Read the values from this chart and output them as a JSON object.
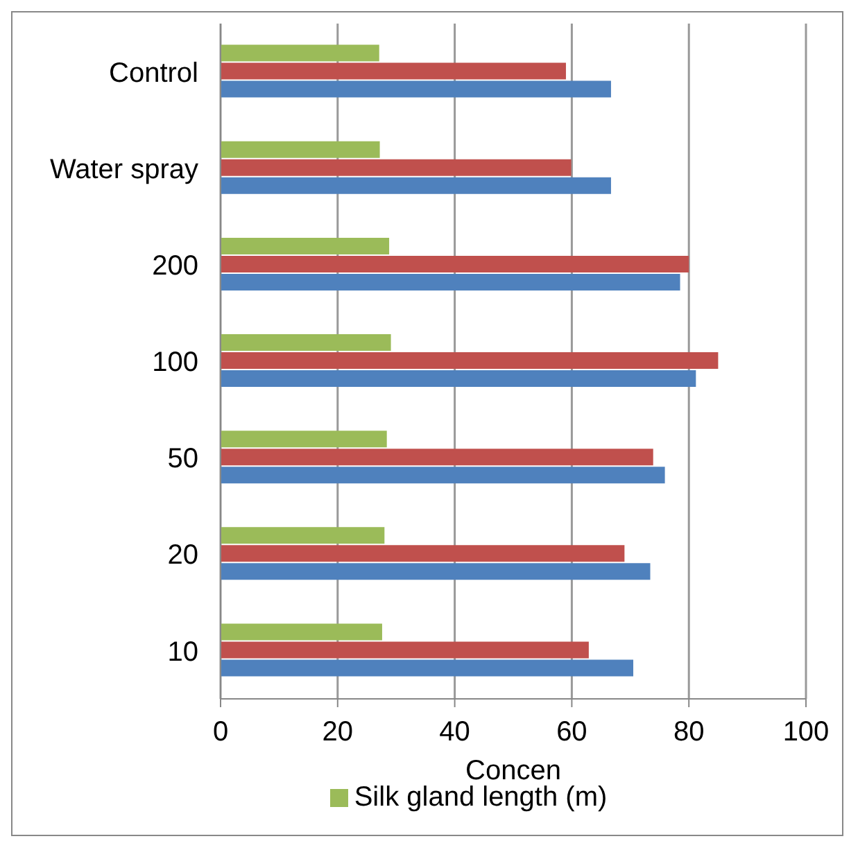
{
  "chart_data": {
    "type": "bar",
    "orientation": "horizontal",
    "xlabel": "Concen",
    "categories": [
      "Control",
      "Water spray",
      "200",
      "100",
      "50",
      "20",
      "10"
    ],
    "series": [
      {
        "name": "Silk gland length (m)",
        "color": "#9bbb59",
        "values": [
          27.1,
          27.2,
          28.8,
          29.1,
          28.4,
          28.0,
          27.6
        ]
      },
      {
        "color": "#c0504d",
        "values": [
          59.0,
          59.9,
          80.0,
          85.0,
          73.9,
          69.0,
          62.9
        ]
      },
      {
        "color": "#4f81bd",
        "values": [
          66.7,
          66.7,
          78.5,
          81.2,
          75.9,
          73.4,
          70.5
        ]
      }
    ],
    "xlim": [
      0,
      100
    ],
    "xticks": [
      0,
      20,
      40,
      60,
      80,
      100
    ],
    "grid": "x",
    "legend": "bottom"
  }
}
